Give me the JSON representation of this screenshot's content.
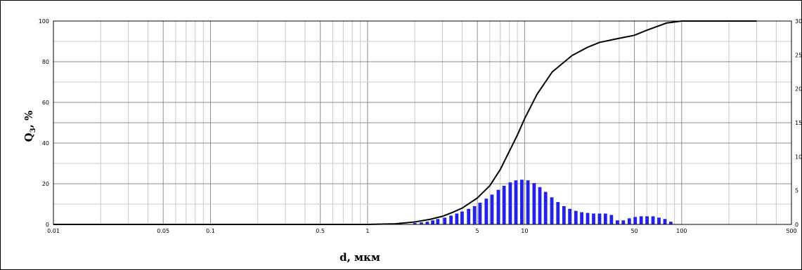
{
  "chart_data": {
    "type": "bar+line",
    "title": "",
    "xlabel": "d, мкм",
    "ylabel_main": "Q",
    "ylabel_sub": "3",
    "ylabel_tail": ", %",
    "x_scale": "log",
    "xlim": [
      0.01,
      500
    ],
    "ylim_left": [
      0,
      100
    ],
    "ylim_right": [
      0,
      30
    ],
    "x_tick_labels": [
      {
        "value": 0.01,
        "label": "0.01"
      },
      {
        "value": 0.05,
        "label": "0.05"
      },
      {
        "value": 0.1,
        "label": "0.1"
      },
      {
        "value": 0.5,
        "label": "0.5"
      },
      {
        "value": 1,
        "label": "1"
      },
      {
        "value": 5,
        "label": "5"
      },
      {
        "value": 10,
        "label": "10"
      },
      {
        "value": 50,
        "label": "50"
      },
      {
        "value": 100,
        "label": "100"
      },
      {
        "value": 500,
        "label": "500"
      }
    ],
    "y_left_ticks": [
      {
        "value": 0,
        "label": "0"
      },
      {
        "value": 20,
        "label": "20"
      },
      {
        "value": 40,
        "label": "40"
      },
      {
        "value": 60,
        "label": "60"
      },
      {
        "value": 80,
        "label": "80"
      },
      {
        "value": 100,
        "label": "100"
      }
    ],
    "y_right_ticks": [
      {
        "value": 0,
        "label": "0"
      },
      {
        "value": 5,
        "label": "5"
      },
      {
        "value": 10,
        "label": "10"
      },
      {
        "value": 15,
        "label": "15"
      },
      {
        "value": 20,
        "label": "20"
      },
      {
        "value": 25,
        "label": "25"
      },
      {
        "value": 30,
        "label": "30"
      }
    ],
    "grid": true,
    "colors": {
      "bars": "#2323e6",
      "curve": "#000000",
      "grid_minor": "#c8c8c8",
      "grid_major": "#8c8c8c"
    },
    "cumulative_curve": {
      "axis": "left",
      "x": [
        0.01,
        1,
        1.5,
        2,
        2.5,
        3,
        3.5,
        4,
        5,
        6,
        7,
        8,
        9,
        10,
        12,
        15,
        20,
        25,
        30,
        40,
        50,
        60,
        80,
        100,
        200,
        300
      ],
      "y": [
        0,
        0,
        0.3,
        1.2,
        2.5,
        4,
        6,
        8,
        13,
        19,
        27,
        36,
        44,
        52,
        64,
        75,
        83,
        87,
        89.5,
        91.5,
        93,
        95.5,
        99,
        100,
        100,
        100
      ]
    },
    "bars": {
      "axis": "right",
      "x": [
        2.0,
        2.2,
        2.4,
        2.6,
        2.8,
        3.1,
        3.4,
        3.7,
        4.0,
        4.4,
        4.8,
        5.2,
        5.7,
        6.2,
        6.8,
        7.4,
        8.1,
        8.8,
        9.6,
        10.5,
        11.5,
        12.5,
        13.6,
        14.9,
        16.3,
        17.8,
        19.4,
        21.2,
        23.1,
        25.2,
        27.5,
        30.0,
        32.7,
        35.7,
        39,
        42.5,
        46.4,
        50.6,
        55.2,
        60.2,
        65.7,
        71.7,
        78.2,
        85.3
      ],
      "values": [
        0.2,
        0.3,
        0.4,
        0.6,
        0.8,
        1.0,
        1.3,
        1.6,
        1.9,
        2.3,
        2.7,
        3.2,
        3.8,
        4.4,
        5.1,
        5.7,
        6.2,
        6.5,
        6.6,
        6.5,
        6.1,
        5.5,
        4.8,
        4.0,
        3.3,
        2.7,
        2.3,
        2.0,
        1.8,
        1.7,
        1.6,
        1.6,
        1.6,
        1.4,
        0.6,
        0.6,
        0.9,
        1.1,
        1.2,
        1.2,
        1.2,
        1.0,
        0.8,
        0.4
      ]
    }
  }
}
